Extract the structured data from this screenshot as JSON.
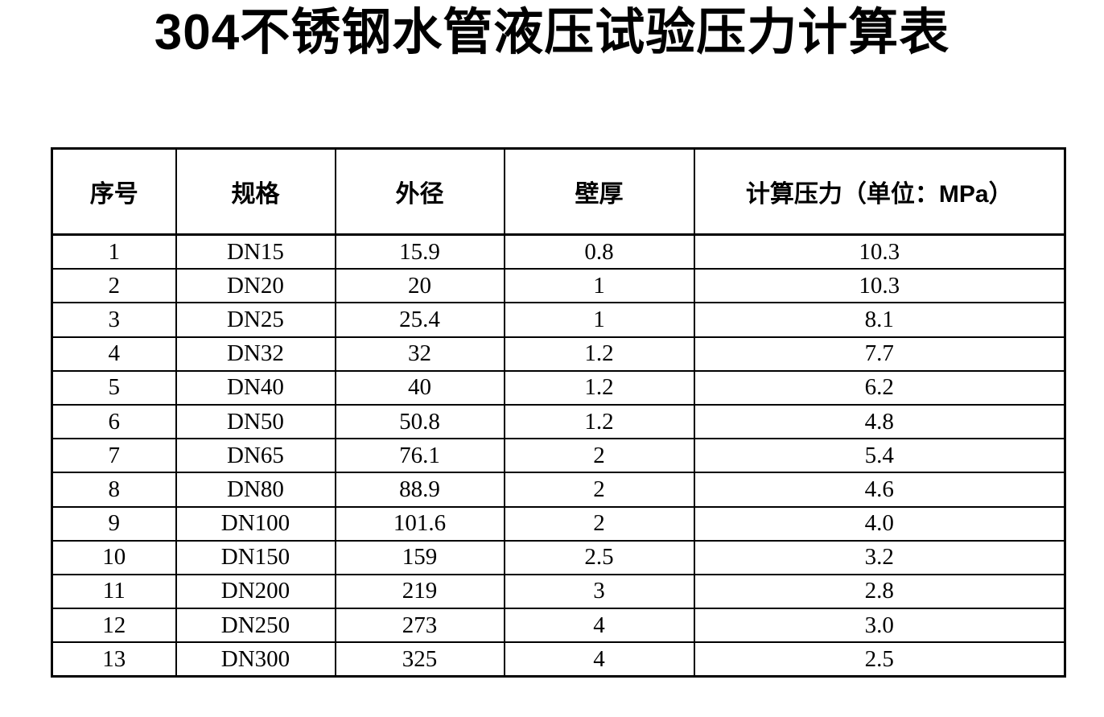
{
  "page": {
    "title": "304不锈钢水管液压试验压力计算表"
  },
  "table": {
    "columns": [
      "序号",
      "规格",
      "外径",
      "壁厚",
      "计算压力（单位：MPa）"
    ],
    "rows": [
      [
        "1",
        "DN15",
        "15.9",
        "0.8",
        "10.3"
      ],
      [
        "2",
        "DN20",
        "20",
        "1",
        "10.3"
      ],
      [
        "3",
        "DN25",
        "25.4",
        "1",
        "8.1"
      ],
      [
        "4",
        "DN32",
        "32",
        "1.2",
        "7.7"
      ],
      [
        "5",
        "DN40",
        "40",
        "1.2",
        "6.2"
      ],
      [
        "6",
        "DN50",
        "50.8",
        "1.2",
        "4.8"
      ],
      [
        "7",
        "DN65",
        "76.1",
        "2",
        "5.4"
      ],
      [
        "8",
        "DN80",
        "88.9",
        "2",
        "4.6"
      ],
      [
        "9",
        "DN100",
        "101.6",
        "2",
        "4.0"
      ],
      [
        "10",
        "DN150",
        "159",
        "2.5",
        "3.2"
      ],
      [
        "11",
        "DN200",
        "219",
        "3",
        "2.8"
      ],
      [
        "12",
        "DN250",
        "273",
        "4",
        "3.0"
      ],
      [
        "13",
        "DN300",
        "325",
        "4",
        "2.5"
      ]
    ]
  },
  "colors": {
    "background": "#ffffff",
    "text": "#000000",
    "border": "#000000"
  }
}
